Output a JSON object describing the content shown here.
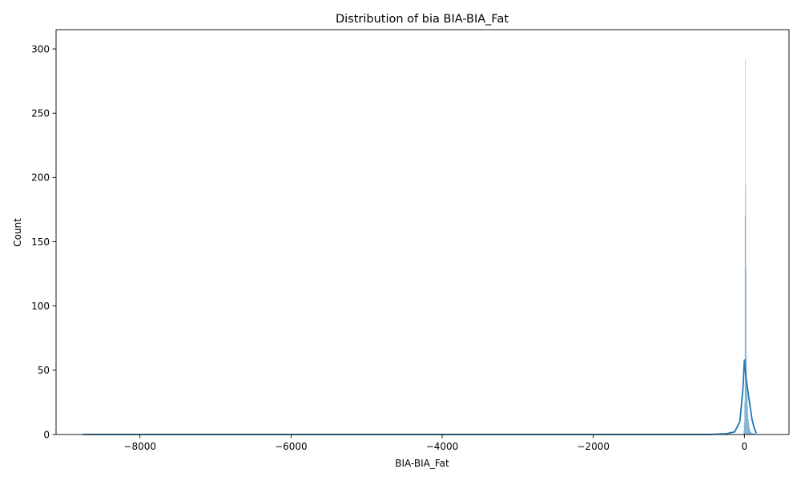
{
  "chart_data": {
    "type": "bar",
    "title": "Distribution of bia BIA-BIA_Fat",
    "xlabel": "BIA-BIA_Fat",
    "ylabel": "Count",
    "xlim": [
      -9110,
      590
    ],
    "ylim": [
      0,
      315
    ],
    "xticks": [
      -8000,
      -6000,
      -4000,
      -2000,
      0
    ],
    "xtick_labels": [
      "−8000",
      "−6000",
      "−4000",
      "−2000",
      "0"
    ],
    "yticks": [
      0,
      50,
      100,
      150,
      200,
      250,
      300
    ],
    "ytick_labels": [
      "0",
      "50",
      "100",
      "150",
      "200",
      "250",
      "300"
    ],
    "grid": false,
    "bar_color": "#1f77b4",
    "kde_color": "#1f77b4",
    "histogram": {
      "bins": [
        {
          "x0": -10,
          "x1": -5,
          "count": 3
        },
        {
          "x0": -5,
          "x1": 0,
          "count": 9
        },
        {
          "x0": 0,
          "x1": 5,
          "count": 25
        },
        {
          "x0": 5,
          "x1": 10,
          "count": 170
        },
        {
          "x0": 10,
          "x1": 15,
          "count": 292
        },
        {
          "x0": 15,
          "x1": 20,
          "count": 194
        },
        {
          "x0": 20,
          "x1": 25,
          "count": 128
        },
        {
          "x0": 25,
          "x1": 30,
          "count": 60
        },
        {
          "x0": 30,
          "x1": 35,
          "count": 42
        },
        {
          "x0": 35,
          "x1": 40,
          "count": 30
        },
        {
          "x0": 40,
          "x1": 45,
          "count": 22
        },
        {
          "x0": 45,
          "x1": 50,
          "count": 16
        },
        {
          "x0": 50,
          "x1": 55,
          "count": 12
        },
        {
          "x0": 55,
          "x1": 60,
          "count": 9
        },
        {
          "x0": 60,
          "x1": 65,
          "count": 7
        },
        {
          "x0": 65,
          "x1": 70,
          "count": 5
        },
        {
          "x0": 70,
          "x1": 75,
          "count": 4
        },
        {
          "x0": 75,
          "x1": 80,
          "count": 3
        },
        {
          "x0": 80,
          "x1": 85,
          "count": 2
        },
        {
          "x0": 85,
          "x1": 95,
          "count": 2
        },
        {
          "x0": 95,
          "x1": 110,
          "count": 1
        },
        {
          "x0": 110,
          "x1": 150,
          "count": 1
        }
      ]
    },
    "kde": {
      "x": [
        -8750,
        -8000,
        -7000,
        -6000,
        -5000,
        -4000,
        -3000,
        -2000,
        -1000,
        -500,
        -250,
        -130,
        -60,
        -20,
        0,
        20,
        60,
        100,
        130,
        160
      ],
      "y": [
        0,
        0,
        0,
        0,
        0,
        0,
        0,
        0,
        0,
        0,
        0.5,
        2,
        10,
        35,
        58,
        45,
        28,
        12,
        5,
        1
      ]
    }
  }
}
